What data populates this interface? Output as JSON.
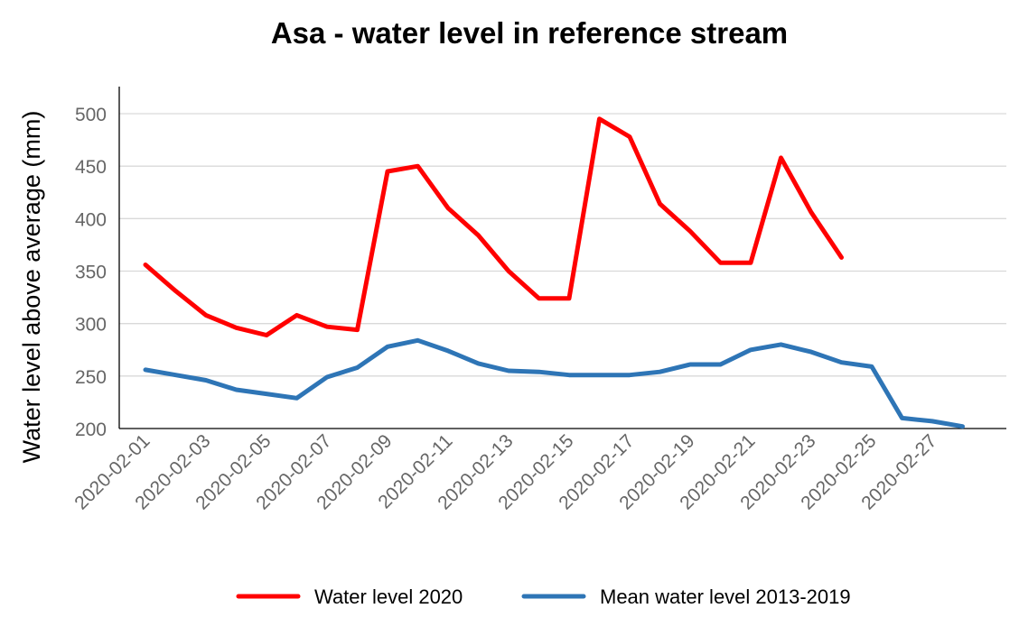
{
  "chart_data": {
    "type": "line",
    "title": "Asa - water level in reference stream",
    "ylabel": "Water level above average (mm)",
    "xlabel": "",
    "ylim": [
      200,
      525
    ],
    "yticks": [
      200,
      250,
      300,
      350,
      400,
      450,
      500
    ],
    "grid": "horizontal",
    "legend": "bottom",
    "x": [
      "2020-02-01",
      "2020-02-02",
      "2020-02-03",
      "2020-02-04",
      "2020-02-05",
      "2020-02-06",
      "2020-02-07",
      "2020-02-08",
      "2020-02-09",
      "2020-02-10",
      "2020-02-11",
      "2020-02-12",
      "2020-02-13",
      "2020-02-14",
      "2020-02-15",
      "2020-02-16",
      "2020-02-17",
      "2020-02-18",
      "2020-02-19",
      "2020-02-20",
      "2020-02-21",
      "2020-02-22",
      "2020-02-23",
      "2020-02-24",
      "2020-02-25",
      "2020-02-26",
      "2020-02-27",
      "2020-02-28"
    ],
    "xtick_labels": [
      "2020-02-01",
      "2020-02-03",
      "2020-02-05",
      "2020-02-07",
      "2020-02-09",
      "2020-02-11",
      "2020-02-13",
      "2020-02-15",
      "2020-02-17",
      "2020-02-19",
      "2020-02-21",
      "2020-02-23",
      "2020-02-25",
      "2020-02-27"
    ],
    "series": [
      {
        "name": "Water level 2020",
        "color": "#ff0000",
        "values": [
          356,
          331,
          308,
          296,
          289,
          308,
          297,
          294,
          445,
          450,
          410,
          384,
          350,
          324,
          324,
          495,
          478,
          414,
          388,
          358,
          358,
          458,
          406,
          363,
          null,
          null,
          null,
          null
        ]
      },
      {
        "name": "Mean water level 2013-2019",
        "color": "#2e75b6",
        "values": [
          256,
          251,
          246,
          237,
          233,
          229,
          249,
          258,
          278,
          284,
          274,
          262,
          255,
          254,
          251,
          251,
          251,
          254,
          261,
          261,
          275,
          280,
          273,
          263,
          259,
          210,
          207,
          202
        ]
      }
    ]
  }
}
